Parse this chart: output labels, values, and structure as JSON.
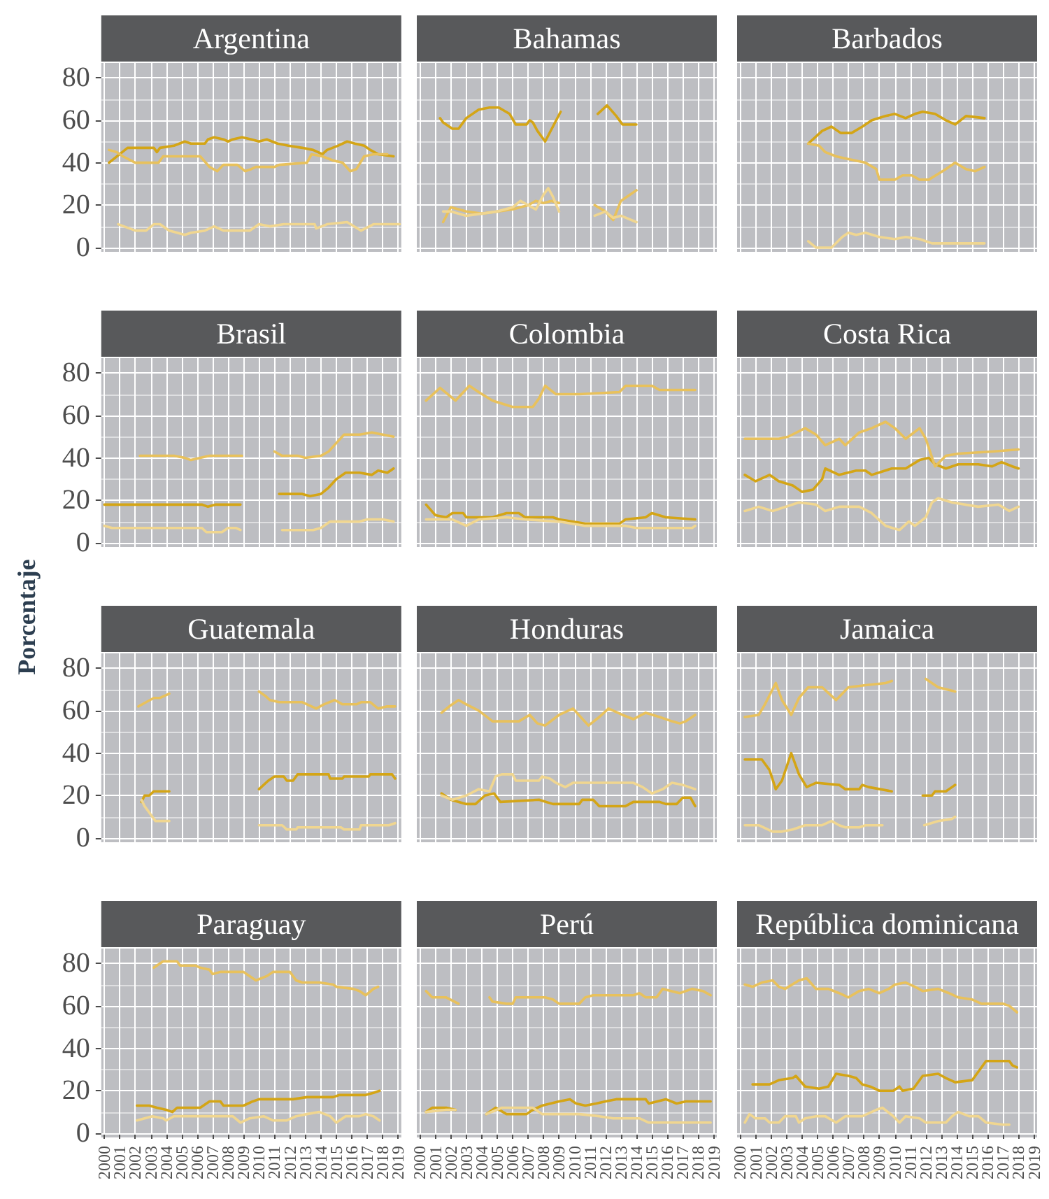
{
  "chart_data": [
    {
      "type": "line",
      "title": "Argentina",
      "xlim": [
        1999.8,
        2019.2
      ],
      "xticks": [
        2000,
        2001,
        2002,
        2003,
        2004,
        2005,
        2006,
        2007,
        2008,
        2009,
        2010,
        2011,
        2012,
        2013,
        2014,
        2015,
        2016,
        2017,
        2018,
        2019
      ],
      "ylim": [
        -2,
        87
      ],
      "yticks": [
        0,
        20,
        40,
        60,
        80
      ],
      "grid": true,
      "tick_labels": "y",
      "series": [
        {
          "color": "#d4a516",
          "x": [
            2000.3,
            2001.5,
            2003.2,
            2003.4,
            2003.6,
            2004.5,
            2005.2,
            2005.6,
            2006.5,
            2006.7,
            2007.1,
            2007.7,
            2008.0,
            2008.3,
            2008.9,
            2009.5,
            2010.0,
            2010.5,
            2011.2,
            2011.9,
            2012.8,
            2013.5,
            2013.8,
            2014.1,
            2014.4,
            2015.1,
            2015.7,
            2016.2,
            2016.8,
            2017.2,
            2017.7,
            2018.7
          ],
          "values": [
            40,
            47,
            47,
            45,
            47,
            48,
            50,
            49,
            49,
            51,
            52,
            51,
            50,
            51,
            52,
            51,
            50,
            51,
            49,
            48,
            47,
            46,
            45,
            44,
            46,
            48,
            50,
            49,
            48,
            46,
            44,
            43
          ]
        },
        {
          "color": "#e8c15c",
          "x": [
            2000.3,
            2000.8,
            2001.2,
            2002.0,
            2003.5,
            2003.8,
            2006.2,
            2006.8,
            2007.3,
            2007.7,
            2008.6,
            2009.1,
            2009.5,
            2009.8,
            2011.0,
            2011.3,
            2013.1,
            2013.4,
            2014.1,
            2014.8,
            2015.4,
            2015.9,
            2016.3,
            2016.8,
            2017.4,
            2018.3
          ],
          "values": [
            46,
            45,
            43,
            40,
            40,
            43,
            43,
            38,
            36,
            39,
            39,
            36,
            37,
            38,
            38,
            39,
            40,
            44,
            43,
            41,
            40,
            36,
            37,
            43,
            44,
            44
          ]
        },
        {
          "color": "#f0d690",
          "x": [
            2000.9,
            2002.0,
            2002.7,
            2003.2,
            2003.6,
            2004.2,
            2005.2,
            2005.6,
            2006.5,
            2007.1,
            2007.7,
            2009.4,
            2010.0,
            2010.7,
            2011.6,
            2013.6,
            2013.7,
            2014.4,
            2015.7,
            2016.6,
            2017.4,
            2019.1
          ],
          "values": [
            11,
            8,
            8,
            11,
            11,
            8,
            6,
            7,
            8,
            10,
            8,
            8,
            11,
            10,
            11,
            11,
            9,
            11,
            12,
            8,
            11,
            11
          ]
        }
      ]
    },
    {
      "type": "line",
      "title": "Bahamas",
      "xlim": [
        1999.8,
        2019.2
      ],
      "xticks": [
        2000,
        2001,
        2002,
        2003,
        2004,
        2005,
        2006,
        2007,
        2008,
        2009,
        2010,
        2011,
        2012,
        2013,
        2014,
        2015,
        2016,
        2017,
        2018,
        2019
      ],
      "ylim": [
        -2,
        87
      ],
      "yticks": [
        0,
        20,
        40,
        60,
        80
      ],
      "grid": true,
      "tick_labels": false,
      "series": [
        {
          "color": "#d4a516",
          "x": [
            2001.3,
            2001.5,
            2002.1,
            2002.5,
            2003.0,
            2003.8,
            2004.5,
            2005.1,
            2005.8,
            2006.2,
            2006.9,
            2007.1,
            2007.3,
            2007.6,
            2008.1,
            2009.1,
            2010.3,
            2011.5,
            2012.1,
            2012.7,
            2013.1,
            2014.0
          ],
          "values": [
            61,
            59,
            56,
            56,
            61,
            65,
            66,
            66,
            63,
            58,
            58,
            60,
            59,
            55,
            50,
            64,
            null,
            63,
            67,
            62,
            58,
            58
          ]
        },
        {
          "color": "#e8c15c",
          "x": [
            2001.5,
            2002.0,
            2003.0,
            2004.0,
            2005.0,
            2006.0,
            2007.0,
            2007.5,
            2008.0,
            2008.5,
            2009.0,
            2010.3,
            2011.3,
            2012.0,
            2012.5,
            2013.0,
            2014.0
          ],
          "values": [
            12,
            19,
            17,
            16,
            17,
            18,
            20,
            22,
            21,
            22,
            21,
            null,
            20,
            17,
            13,
            22,
            27
          ]
        },
        {
          "color": "#f0d690",
          "x": [
            2001.5,
            2002.0,
            2003.0,
            2004.0,
            2005.0,
            2006.0,
            2006.5,
            2007.0,
            2007.5,
            2008.0,
            2008.3,
            2008.6,
            2009.0,
            2010.3,
            2011.3,
            2012.0,
            2012.5,
            2013.0,
            2014.0
          ],
          "values": [
            17,
            17,
            15,
            16,
            17,
            19,
            22,
            20,
            18,
            25,
            28,
            24,
            17,
            null,
            15,
            17,
            14,
            15,
            12
          ]
        }
      ]
    },
    {
      "type": "line",
      "title": "Barbados",
      "xlim": [
        1999.8,
        2019.2
      ],
      "xticks": [
        2000,
        2001,
        2002,
        2003,
        2004,
        2005,
        2006,
        2007,
        2008,
        2009,
        2010,
        2011,
        2012,
        2013,
        2014,
        2015,
        2016,
        2017,
        2018,
        2019
      ],
      "ylim": [
        -2,
        87
      ],
      "yticks": [
        0,
        20,
        40,
        60,
        80
      ],
      "grid": true,
      "tick_labels": false,
      "series": [
        {
          "color": "#d4a516",
          "x": [
            2004.4,
            2005.3,
            2005.9,
            2006.5,
            2007.2,
            2007.9,
            2008.5,
            2009.4,
            2010.0,
            2010.7,
            2011.3,
            2011.8,
            2012.6,
            2013.3,
            2013.9,
            2014.6,
            2015.8
          ],
          "values": [
            49,
            55,
            57,
            54,
            54,
            57,
            60,
            62,
            63,
            61,
            63,
            64,
            63,
            60,
            58,
            62,
            61
          ]
        },
        {
          "color": "#e8c15c",
          "x": [
            2004.4,
            2005.1,
            2005.5,
            2006.2,
            2006.8,
            2008.1,
            2008.8,
            2009.0,
            2010.0,
            2010.5,
            2011.1,
            2011.6,
            2012.2,
            2013.3,
            2013.9,
            2014.6,
            2015.2,
            2015.8
          ],
          "values": [
            49,
            48,
            45,
            43,
            42,
            40,
            37,
            32,
            32,
            34,
            34,
            32,
            32,
            37,
            40,
            37,
            36,
            38
          ]
        },
        {
          "color": "#f0d690",
          "x": [
            2004.4,
            2004.9,
            2005.9,
            2006.6,
            2007.0,
            2007.5,
            2008.1,
            2009.0,
            2010.0,
            2010.7,
            2011.6,
            2012.4,
            2015.8
          ],
          "values": [
            3,
            0,
            0,
            5,
            7,
            6,
            7,
            5,
            4,
            5,
            4,
            2,
            2
          ]
        }
      ]
    },
    {
      "type": "line",
      "title": "Brasil",
      "xlim": [
        1999.8,
        2019.2
      ],
      "xticks": [
        2000,
        2001,
        2002,
        2003,
        2004,
        2005,
        2006,
        2007,
        2008,
        2009,
        2010,
        2011,
        2012,
        2013,
        2014,
        2015,
        2016,
        2017,
        2018,
        2019
      ],
      "ylim": [
        -2,
        87
      ],
      "yticks": [
        0,
        20,
        40,
        60,
        80
      ],
      "grid": true,
      "tick_labels": "y",
      "series": [
        {
          "color": "#d4a516",
          "x": [
            2000.0,
            2006.3,
            2006.7,
            2007.2,
            2008.8,
            2010.0,
            2011.3,
            2012.8,
            2013.3,
            2014.0,
            2014.5,
            2015.0,
            2015.6,
            2016.5,
            2017.3,
            2017.7,
            2018.3,
            2018.7
          ],
          "values": [
            18,
            18,
            17,
            18,
            18,
            null,
            23,
            23,
            22,
            23,
            26,
            30,
            33,
            33,
            32,
            34,
            33,
            35
          ]
        },
        {
          "color": "#e8c15c",
          "x": [
            2002.3,
            2004.5,
            2005.2,
            2005.6,
            2006.2,
            2006.8,
            2008.9,
            2010.0,
            2011.0,
            2011.5,
            2012.5,
            2013.0,
            2014.0,
            2014.5,
            2015.0,
            2015.5,
            2016.5,
            2017.3,
            2018.0,
            2018.7
          ],
          "values": [
            41,
            41,
            40,
            39,
            40,
            41,
            41,
            null,
            43,
            41,
            41,
            40,
            41,
            43,
            47,
            51,
            51,
            52,
            51,
            50
          ]
        },
        {
          "color": "#f0d690",
          "x": [
            2000.0,
            2000.5,
            2006.3,
            2006.6,
            2007.6,
            2008.0,
            2008.5,
            2008.8,
            2010.0,
            2011.5,
            2013.5,
            2014.0,
            2014.6,
            2016.5,
            2017.0,
            2018.0,
            2018.7
          ],
          "values": [
            8,
            7,
            7,
            5,
            5,
            7,
            7,
            6,
            null,
            6,
            6,
            7,
            10,
            10,
            11,
            11,
            10
          ]
        }
      ]
    },
    {
      "type": "line",
      "title": "Colombia",
      "xlim": [
        1999.8,
        2019.2
      ],
      "xticks": [
        2000,
        2001,
        2002,
        2003,
        2004,
        2005,
        2006,
        2007,
        2008,
        2009,
        2010,
        2011,
        2012,
        2013,
        2014,
        2015,
        2016,
        2017,
        2018,
        2019
      ],
      "ylim": [
        -2,
        87
      ],
      "yticks": [
        0,
        20,
        40,
        60,
        80
      ],
      "grid": true,
      "tick_labels": false,
      "series": [
        {
          "color": "#d4a516",
          "x": [
            2000.4,
            2001.0,
            2001.7,
            2002.1,
            2002.8,
            2003.0,
            2004.7,
            2005.6,
            2006.4,
            2006.8,
            2008.6,
            2009.0,
            2010.7,
            2012.9,
            2013.3,
            2014.6,
            2015.0,
            2015.9,
            2017.8
          ],
          "values": [
            18,
            13,
            12,
            14,
            14,
            12,
            12,
            14,
            14,
            12,
            12,
            11,
            9,
            9,
            11,
            12,
            14,
            12,
            11
          ]
        },
        {
          "color": "#e8c15c",
          "x": [
            2000.4,
            2001.3,
            2002.3,
            2003.2,
            2003.8,
            2004.7,
            2006.0,
            2007.3,
            2007.7,
            2008.1,
            2008.8,
            2010.3,
            2012.9,
            2013.3,
            2015.0,
            2015.5,
            2017.8
          ],
          "values": [
            67,
            73,
            67,
            74,
            71,
            67,
            64,
            64,
            68,
            74,
            70,
            70,
            71,
            74,
            74,
            72,
            72
          ]
        },
        {
          "color": "#f0d690",
          "x": [
            2000.4,
            2002.1,
            2003.0,
            2003.8,
            2005.6,
            2006.8,
            2009.0,
            2010.7,
            2013.3,
            2014.0,
            2017.6,
            2017.8
          ],
          "values": [
            11,
            11,
            8,
            11,
            12,
            11,
            10,
            8,
            8,
            7,
            7,
            8
          ]
        }
      ]
    },
    {
      "type": "line",
      "title": "Costa Rica",
      "xlim": [
        1999.8,
        2019.2
      ],
      "xticks": [
        2000,
        2001,
        2002,
        2003,
        2004,
        2005,
        2006,
        2007,
        2008,
        2009,
        2010,
        2011,
        2012,
        2013,
        2014,
        2015,
        2016,
        2017,
        2018,
        2019
      ],
      "ylim": [
        -2,
        87
      ],
      "yticks": [
        0,
        20,
        40,
        60,
        80
      ],
      "grid": true,
      "tick_labels": false,
      "series": [
        {
          "color": "#d4a516",
          "x": [
            2000.3,
            2001.0,
            2001.9,
            2002.5,
            2003.4,
            2004.0,
            2004.7,
            2005.3,
            2005.5,
            2006.4,
            2007.5,
            2008.1,
            2008.5,
            2009.8,
            2010.7,
            2011.6,
            2012.2,
            2012.6,
            2013.3,
            2014.1,
            2015.4,
            2016.3,
            2016.9,
            2017.6,
            2018.0
          ],
          "values": [
            32,
            29,
            32,
            29,
            27,
            24,
            25,
            30,
            35,
            32,
            34,
            34,
            32,
            35,
            35,
            39,
            40,
            37,
            35,
            37,
            37,
            36,
            38,
            36,
            35
          ]
        },
        {
          "color": "#e8c15c",
          "x": [
            2000.3,
            2002.5,
            2003.1,
            2004.2,
            2004.9,
            2005.5,
            2006.4,
            2006.8,
            2007.7,
            2008.5,
            2009.4,
            2010.0,
            2010.7,
            2011.6,
            2012.0,
            2012.6,
            2013.3,
            2014.1,
            2016.3,
            2018.0
          ],
          "values": [
            49,
            49,
            50,
            54,
            51,
            46,
            49,
            46,
            52,
            54,
            57,
            54,
            49,
            54,
            49,
            36,
            41,
            42,
            43,
            44
          ]
        },
        {
          "color": "#f0d690",
          "x": [
            2000.3,
            2001.2,
            2002.1,
            2003.8,
            2004.9,
            2005.5,
            2006.4,
            2007.7,
            2008.5,
            2009.4,
            2010.3,
            2010.9,
            2011.3,
            2012.0,
            2012.4,
            2012.8,
            2013.7,
            2015.4,
            2016.7,
            2017.4,
            2018.0
          ],
          "values": [
            15,
            17,
            15,
            19,
            18,
            15,
            17,
            17,
            14,
            8,
            6,
            10,
            8,
            12,
            19,
            21,
            19,
            17,
            18,
            15,
            17
          ]
        }
      ]
    },
    {
      "type": "line",
      "title": "Guatemala",
      "ylabel": "Porcentaje",
      "xlim": [
        1999.8,
        2019.2
      ],
      "xticks": [
        2000,
        2001,
        2002,
        2003,
        2004,
        2005,
        2006,
        2007,
        2008,
        2009,
        2010,
        2011,
        2012,
        2013,
        2014,
        2015,
        2016,
        2017,
        2018,
        2019
      ],
      "ylim": [
        -2,
        87
      ],
      "yticks": [
        0,
        20,
        40,
        60,
        80
      ],
      "grid": true,
      "tick_labels": "y",
      "series": [
        {
          "color": "#d4a516",
          "x": [
            2002.4,
            2002.6,
            2002.9,
            2003.2,
            2004.2,
            2007.0,
            2010.0,
            2010.6,
            2011.0,
            2011.6,
            2011.8,
            2012.2,
            2012.5,
            2014.5,
            2014.6,
            2015.4,
            2015.5,
            2017.1,
            2017.2,
            2018.6,
            2018.8
          ],
          "values": [
            17,
            20,
            20,
            22,
            22,
            null,
            23,
            27,
            29,
            29,
            27,
            27,
            30,
            30,
            28,
            28,
            29,
            29,
            30,
            30,
            28
          ]
        },
        {
          "color": "#e8c15c",
          "x": [
            2002.2,
            2002.7,
            2003.2,
            2003.6,
            2004.2,
            2007.0,
            2010.0,
            2010.4,
            2010.7,
            2011.3,
            2012.8,
            2013.7,
            2014.2,
            2014.9,
            2015.4,
            2016.3,
            2016.6,
            2017.2,
            2017.7,
            2018.3,
            2018.8
          ],
          "values": [
            62,
            64,
            66,
            66,
            68,
            null,
            69,
            67,
            65,
            64,
            64,
            61,
            63,
            65,
            63,
            63,
            64,
            64,
            61,
            62,
            62
          ]
        },
        {
          "color": "#f0d690",
          "x": [
            2002.4,
            2002.6,
            2003.0,
            2003.3,
            2004.2,
            2007.0,
            2010.0,
            2011.5,
            2011.8,
            2012.4,
            2012.5,
            2015.3,
            2015.5,
            2016.5,
            2016.6,
            2018.4,
            2018.8
          ],
          "values": [
            18,
            15,
            11,
            8,
            8,
            null,
            6,
            6,
            4,
            4,
            5,
            5,
            4,
            4,
            6,
            6,
            7
          ]
        }
      ]
    },
    {
      "type": "line",
      "title": "Honduras",
      "xlim": [
        1999.8,
        2019.2
      ],
      "xticks": [
        2000,
        2001,
        2002,
        2003,
        2004,
        2005,
        2006,
        2007,
        2008,
        2009,
        2010,
        2011,
        2012,
        2013,
        2014,
        2015,
        2016,
        2017,
        2018,
        2019
      ],
      "ylim": [
        -2,
        87
      ],
      "yticks": [
        0,
        20,
        40,
        60,
        80
      ],
      "grid": true,
      "tick_labels": false,
      "series": [
        {
          "color": "#d4a516",
          "x": [
            2001.4,
            2002.0,
            2003.0,
            2003.6,
            2004.2,
            2004.8,
            2005.2,
            2007.7,
            2008.6,
            2010.3,
            2010.5,
            2011.2,
            2011.6,
            2013.3,
            2013.8,
            2015.5,
            2015.9,
            2016.6,
            2017.0,
            2017.5,
            2017.8
          ],
          "values": [
            21,
            18,
            16,
            16,
            20,
            21,
            17,
            18,
            16,
            16,
            18,
            18,
            15,
            15,
            17,
            17,
            16,
            16,
            19,
            19,
            15
          ]
        },
        {
          "color": "#e8c15c",
          "x": [
            2001.4,
            2001.9,
            2002.5,
            2003.0,
            2003.8,
            2004.7,
            2006.4,
            2007.1,
            2007.6,
            2008.1,
            2009.0,
            2009.9,
            2010.9,
            2011.6,
            2012.2,
            2013.1,
            2013.8,
            2014.6,
            2015.5,
            2016.3,
            2016.8,
            2017.2,
            2017.8
          ],
          "values": [
            59,
            62,
            65,
            63,
            60,
            55,
            55,
            58,
            54,
            53,
            58,
            61,
            53,
            57,
            61,
            58,
            56,
            59,
            57,
            55,
            54,
            55,
            58
          ]
        },
        {
          "color": "#f0d690",
          "x": [
            2001.4,
            2002.1,
            2003.0,
            2003.8,
            2004.5,
            2004.9,
            2005.3,
            2006.0,
            2006.2,
            2007.7,
            2007.9,
            2008.4,
            2008.8,
            2009.4,
            2009.9,
            2013.8,
            2014.4,
            2015.0,
            2015.7,
            2016.3,
            2017.0,
            2017.8
          ],
          "values": [
            20,
            18,
            20,
            23,
            22,
            29,
            30,
            30,
            27,
            27,
            29,
            28,
            26,
            24,
            26,
            26,
            24,
            21,
            23,
            26,
            25,
            23
          ]
        }
      ]
    },
    {
      "type": "line",
      "title": "Jamaica",
      "xlim": [
        1999.8,
        2019.2
      ],
      "xticks": [
        2000,
        2001,
        2002,
        2003,
        2004,
        2005,
        2006,
        2007,
        2008,
        2009,
        2010,
        2011,
        2012,
        2013,
        2014,
        2015,
        2016,
        2017,
        2018,
        2019
      ],
      "ylim": [
        -2,
        87
      ],
      "yticks": [
        0,
        20,
        40,
        60,
        80
      ],
      "grid": true,
      "tick_labels": false,
      "series": [
        {
          "color": "#d4a516",
          "x": [
            2000.3,
            2001.4,
            2001.9,
            2002.3,
            2002.7,
            2003.3,
            2003.8,
            2004.3,
            2004.9,
            2006.4,
            2006.8,
            2007.7,
            2007.9,
            2008.3,
            2009.8,
            2011.0,
            2011.8,
            2012.4,
            2012.6,
            2013.3,
            2013.7,
            2013.9
          ],
          "values": [
            37,
            37,
            32,
            23,
            27,
            40,
            30,
            24,
            26,
            25,
            23,
            23,
            25,
            24,
            22,
            null,
            20,
            20,
            22,
            22,
            24,
            25
          ]
        },
        {
          "color": "#e8c15c",
          "x": [
            2000.3,
            2001.2,
            2001.6,
            2002.3,
            2002.7,
            2003.3,
            2003.8,
            2004.4,
            2005.3,
            2006.2,
            2007.0,
            2008.1,
            2009.4,
            2009.8,
            2011.0,
            2012.0,
            2012.8,
            2013.9
          ],
          "values": [
            57,
            58,
            63,
            73,
            65,
            58,
            66,
            71,
            71,
            65,
            71,
            72,
            73,
            74,
            null,
            75,
            71,
            69
          ]
        },
        {
          "color": "#f0d690",
          "x": [
            2000.3,
            2001.2,
            2002.1,
            2002.7,
            2003.4,
            2004.2,
            2005.3,
            2005.9,
            2006.4,
            2006.8,
            2007.7,
            2008.1,
            2008.5,
            2009.2,
            2011.0,
            2011.9,
            2012.8,
            2013.7,
            2013.9
          ],
          "values": [
            6,
            6,
            3,
            3,
            4,
            6,
            6,
            8,
            6,
            5,
            5,
            6,
            6,
            6,
            null,
            6,
            8,
            9,
            10
          ]
        }
      ]
    },
    {
      "type": "line",
      "title": "Paraguay",
      "xlim": [
        1999.8,
        2019.2
      ],
      "xticks": [
        2000,
        2001,
        2002,
        2003,
        2004,
        2005,
        2006,
        2007,
        2008,
        2009,
        2010,
        2011,
        2012,
        2013,
        2014,
        2015,
        2016,
        2017,
        2018,
        2019
      ],
      "ylim": [
        -2,
        87
      ],
      "yticks": [
        0,
        20,
        40,
        60,
        80
      ],
      "grid": true,
      "series": [
        {
          "color": "#d4a516",
          "x": [
            2002.1,
            2002.9,
            2003.4,
            2004.0,
            2004.4,
            2004.7,
            2005.5,
            2006.2,
            2006.8,
            2007.5,
            2007.7,
            2009.0,
            2009.6,
            2010.0,
            2012.2,
            2013.1,
            2014.8,
            2015.2,
            2016.9,
            2017.4,
            2017.8
          ],
          "values": [
            13,
            13,
            12,
            11,
            10,
            12,
            12,
            12,
            15,
            15,
            13,
            13,
            15,
            16,
            16,
            17,
            17,
            18,
            18,
            19,
            20
          ]
        },
        {
          "color": "#e8c15c",
          "x": [
            2003.2,
            2003.8,
            2004.7,
            2004.9,
            2005.9,
            2006.2,
            2006.8,
            2007.0,
            2007.5,
            2009.0,
            2009.4,
            2009.8,
            2010.5,
            2010.9,
            2012.0,
            2012.4,
            2012.8,
            2013.9,
            2014.8,
            2015.0,
            2016.1,
            2016.5,
            2016.9,
            2017.4,
            2017.7
          ],
          "values": [
            78,
            81,
            81,
            79,
            79,
            78,
            77,
            75,
            76,
            76,
            74,
            72,
            74,
            76,
            76,
            72,
            71,
            71,
            70,
            69,
            68,
            67,
            65,
            68,
            69
          ]
        },
        {
          "color": "#f0d690",
          "x": [
            2002.1,
            2003.1,
            2003.8,
            2004.0,
            2004.5,
            2008.3,
            2008.8,
            2009.4,
            2010.3,
            2010.9,
            2011.8,
            2012.4,
            2013.1,
            2013.9,
            2014.6,
            2015.0,
            2015.6,
            2016.5,
            2016.9,
            2017.4,
            2017.8
          ],
          "values": [
            6,
            8,
            7,
            6,
            8,
            8,
            5,
            7,
            8,
            6,
            6,
            8,
            9,
            10,
            8,
            5,
            8,
            8,
            9,
            8,
            6
          ]
        }
      ]
    },
    {
      "type": "line",
      "title": "Perú",
      "xlim": [
        1999.8,
        2019.2
      ],
      "xticks": [
        2000,
        2001,
        2002,
        2003,
        2004,
        2005,
        2006,
        2007,
        2008,
        2009,
        2010,
        2011,
        2012,
        2013,
        2014,
        2015,
        2016,
        2017,
        2018,
        2019
      ],
      "ylim": [
        -2,
        87
      ],
      "yticks": [
        0,
        20,
        40,
        60,
        80
      ],
      "grid": true,
      "tick_labels": "x",
      "series": [
        {
          "color": "#d4a516",
          "x": [
            2000.4,
            2000.8,
            2001.7,
            2002.3,
            2003.4,
            2004.3,
            2004.9,
            2005.6,
            2006.9,
            2007.3,
            2007.9,
            2009.0,
            2009.7,
            2010.1,
            2010.7,
            2011.4,
            2012.0,
            2012.7,
            2014.6,
            2014.8,
            2015.9,
            2016.6,
            2017.2,
            2018.8
          ],
          "values": [
            10,
            12,
            12,
            11,
            null,
            9,
            12,
            9,
            9,
            11,
            13,
            15,
            16,
            14,
            13,
            14,
            15,
            16,
            16,
            14,
            16,
            14,
            15,
            15
          ]
        },
        {
          "color": "#e8c15c",
          "x": [
            2000.4,
            2000.8,
            2001.7,
            2002.5,
            2003.4,
            2004.5,
            2004.7,
            2005.6,
            2006.0,
            2006.2,
            2008.1,
            2008.6,
            2009.0,
            2010.3,
            2010.7,
            2011.2,
            2013.8,
            2014.2,
            2014.6,
            2015.3,
            2015.7,
            2016.8,
            2017.6,
            2018.3,
            2018.8
          ],
          "values": [
            67,
            64,
            64,
            61,
            null,
            64,
            62,
            61,
            61,
            64,
            64,
            63,
            61,
            61,
            64,
            65,
            65,
            66,
            64,
            64,
            68,
            66,
            68,
            67,
            65
          ]
        },
        {
          "color": "#f0d690",
          "x": [
            2000.4,
            2001.7,
            2002.3,
            2003.4,
            2004.3,
            2005.3,
            2007.3,
            2007.9,
            2010.3,
            2011.6,
            2012.5,
            2014.2,
            2014.8,
            2018.8
          ],
          "values": [
            10,
            11,
            11,
            null,
            9,
            12,
            12,
            9,
            9,
            8,
            7,
            7,
            5,
            5
          ]
        }
      ]
    },
    {
      "type": "line",
      "title": "República dominicana",
      "xlim": [
        1999.8,
        2019.2
      ],
      "xticks": [
        2000,
        2001,
        2002,
        2003,
        2004,
        2005,
        2006,
        2007,
        2008,
        2009,
        2010,
        2011,
        2012,
        2013,
        2014,
        2015,
        2016,
        2017,
        2018,
        2019
      ],
      "ylim": [
        -2,
        87
      ],
      "yticks": [
        0,
        20,
        40,
        60,
        80
      ],
      "grid": true,
      "tick_labels": "x",
      "series": [
        {
          "color": "#d4a516",
          "x": [
            2000.8,
            2001.9,
            2002.5,
            2003.4,
            2003.6,
            2004.2,
            2005.1,
            2005.7,
            2006.2,
            2007.0,
            2007.5,
            2007.9,
            2008.4,
            2009.0,
            2009.9,
            2010.3,
            2010.5,
            2011.2,
            2011.8,
            2012.8,
            2013.3,
            2013.9,
            2015.0,
            2015.4,
            2015.9,
            2017.4,
            2017.6,
            2017.9
          ],
          "values": [
            23,
            23,
            25,
            26,
            27,
            22,
            21,
            22,
            28,
            27,
            26,
            23,
            22,
            20,
            20,
            22,
            20,
            21,
            27,
            28,
            26,
            24,
            25,
            29,
            34,
            34,
            32,
            31
          ]
        },
        {
          "color": "#e8c15c",
          "x": [
            2000.3,
            2000.8,
            2001.4,
            2002.1,
            2002.5,
            2002.9,
            2003.8,
            2004.3,
            2004.9,
            2005.7,
            2006.4,
            2007.0,
            2007.7,
            2008.3,
            2009.0,
            2009.6,
            2010.0,
            2010.7,
            2011.3,
            2011.8,
            2012.8,
            2013.5,
            2014.1,
            2015.0,
            2015.6,
            2016.3,
            2017.0,
            2017.4,
            2017.9
          ],
          "values": [
            70,
            69,
            71,
            72,
            69,
            68,
            72,
            73,
            68,
            68,
            66,
            64,
            67,
            68,
            66,
            68,
            70,
            71,
            69,
            67,
            68,
            66,
            64,
            63,
            61,
            61,
            61,
            60,
            57
          ]
        },
        {
          "color": "#f0d690",
          "x": [
            2000.3,
            2000.6,
            2001.0,
            2001.6,
            2001.9,
            2002.5,
            2002.9,
            2003.6,
            2003.8,
            2004.2,
            2004.9,
            2005.5,
            2006.2,
            2006.8,
            2007.9,
            2008.8,
            2009.2,
            2009.9,
            2010.3,
            2010.7,
            2011.6,
            2012.0,
            2013.3,
            2013.7,
            2014.1,
            2014.8,
            2015.4,
            2015.9,
            2017.0,
            2017.4
          ],
          "values": [
            5,
            9,
            7,
            7,
            5,
            5,
            8,
            8,
            5,
            7,
            8,
            8,
            5,
            8,
            8,
            11,
            12,
            8,
            5,
            8,
            7,
            5,
            5,
            8,
            10,
            8,
            8,
            5,
            4,
            4
          ]
        }
      ]
    }
  ]
}
